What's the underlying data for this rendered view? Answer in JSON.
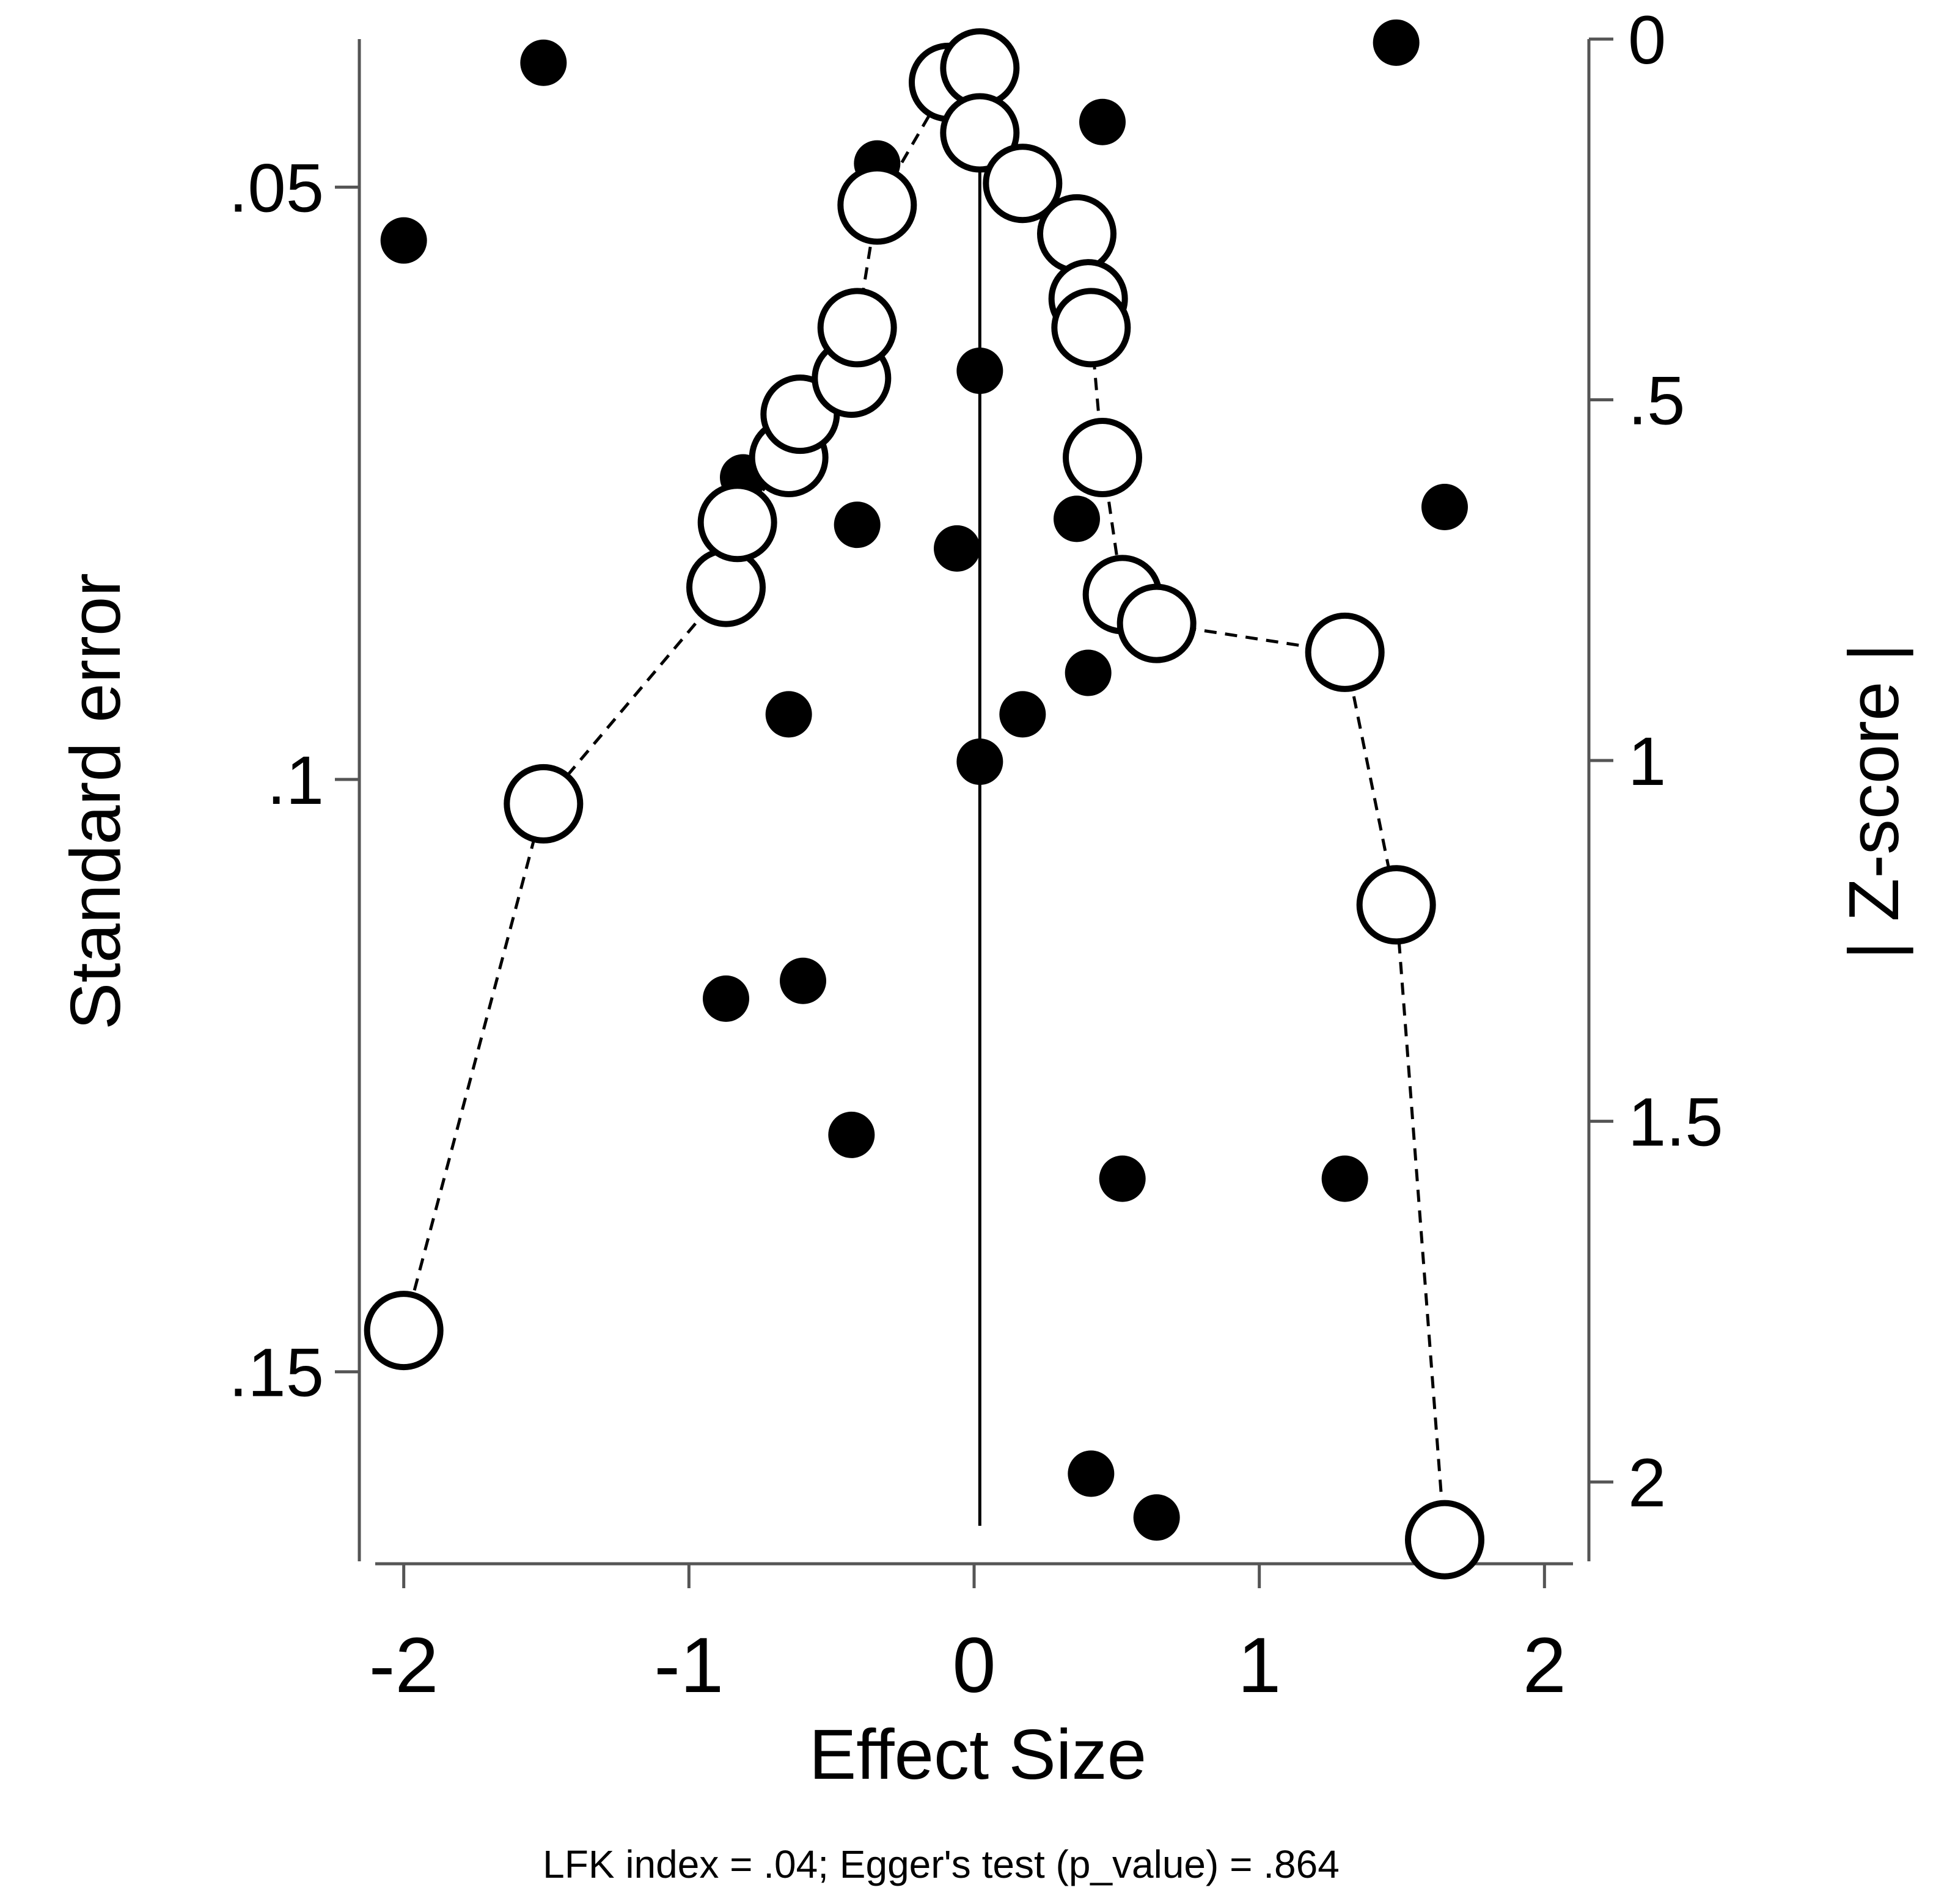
{
  "chart_data": {
    "type": "scatter",
    "title": "",
    "xlabel": "Effect Size",
    "ylabel": "Standard error",
    "ylabel_right": "| Z-score |",
    "footnote": "LFK index = .04; Egger's test (p_value) = .864",
    "xlim": [
      -2.1,
      2.1
    ],
    "ylim": [
      0.0375,
      0.166
    ],
    "ylim_right": [
      0,
      2.11
    ],
    "y_inverted": true,
    "x_ticks": [
      {
        "value": -2,
        "label": "-2"
      },
      {
        "value": -1,
        "label": "-1"
      },
      {
        "value": 0,
        "label": "0"
      },
      {
        "value": 1,
        "label": "1"
      },
      {
        "value": 2,
        "label": "2"
      }
    ],
    "y_ticks": [
      {
        "value": 0.05,
        "label": ".05"
      },
      {
        "value": 0.1,
        "label": ".1"
      },
      {
        "value": 0.15,
        "label": ".15"
      }
    ],
    "y_right_ticks": [
      {
        "value": 0,
        "label": "0"
      },
      {
        "value": 0.5,
        "label": ".5"
      },
      {
        "value": 1,
        "label": "1"
      },
      {
        "value": 1.5,
        "label": "1.5"
      },
      {
        "value": 2,
        "label": "2"
      }
    ],
    "reference_line": {
      "x": 0.02,
      "y_from": 0.0375,
      "y_to": 0.163
    },
    "series": [
      {
        "name": "Studies (standard error)",
        "marker": "filled-circle",
        "axis": "left",
        "points": [
          {
            "x": -2.0,
            "y": 0.0545
          },
          {
            "x": -1.51,
            "y": 0.0395
          },
          {
            "x": 1.48,
            "y": 0.0378
          },
          {
            "x": 0.45,
            "y": 0.0445
          },
          {
            "x": -0.34,
            "y": 0.048
          },
          {
            "x": 0.02,
            "y": 0.0655
          },
          {
            "x": -0.81,
            "y": 0.0745
          },
          {
            "x": -0.41,
            "y": 0.0785
          },
          {
            "x": 0.36,
            "y": 0.078
          },
          {
            "x": -0.06,
            "y": 0.0805
          },
          {
            "x": 1.65,
            "y": 0.077
          },
          {
            "x": 0.4,
            "y": 0.091
          },
          {
            "x": -0.65,
            "y": 0.0945
          },
          {
            "x": 0.17,
            "y": 0.0945
          },
          {
            "x": 0.02,
            "y": 0.0985
          },
          {
            "x": -0.6,
            "y": 0.117
          },
          {
            "x": -0.87,
            "y": 0.1185
          },
          {
            "x": -0.43,
            "y": 0.13
          },
          {
            "x": 0.52,
            "y": 0.1337
          },
          {
            "x": 1.3,
            "y": 0.1337
          },
          {
            "x": 0.41,
            "y": 0.1586
          },
          {
            "x": 0.64,
            "y": 0.1623
          }
        ]
      },
      {
        "name": "Doi plot (|Z-score|)",
        "marker": "open-circle",
        "line": "dashed",
        "axis": "right",
        "points": [
          {
            "x": -2.0,
            "y": 1.79
          },
          {
            "x": -1.51,
            "y": 1.06
          },
          {
            "x": -0.87,
            "y": 0.76
          },
          {
            "x": -0.83,
            "y": 0.67
          },
          {
            "x": -0.65,
            "y": 0.58
          },
          {
            "x": -0.61,
            "y": 0.52
          },
          {
            "x": -0.43,
            "y": 0.47
          },
          {
            "x": -0.41,
            "y": 0.4
          },
          {
            "x": -0.34,
            "y": 0.23
          },
          {
            "x": -0.09,
            "y": 0.06
          },
          {
            "x": 0.02,
            "y": 0.04
          },
          {
            "x": 0.02,
            "y": 0.13
          },
          {
            "x": 0.17,
            "y": 0.2
          },
          {
            "x": 0.36,
            "y": 0.27
          },
          {
            "x": 0.4,
            "y": 0.36
          },
          {
            "x": 0.41,
            "y": 0.4
          },
          {
            "x": 0.45,
            "y": 0.58
          },
          {
            "x": 0.52,
            "y": 0.77
          },
          {
            "x": 0.64,
            "y": 0.81
          },
          {
            "x": 1.3,
            "y": 0.85
          },
          {
            "x": 1.48,
            "y": 1.2
          },
          {
            "x": 1.65,
            "y": 2.08
          }
        ]
      }
    ]
  }
}
